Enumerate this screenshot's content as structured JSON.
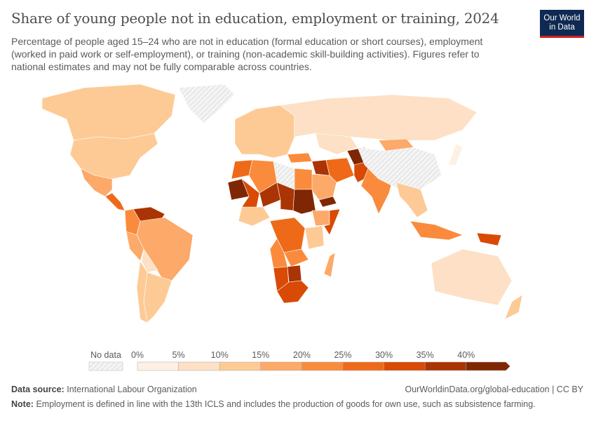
{
  "header": {
    "title": "Share of young people not in education, employment or training, 2024",
    "subtitle": "Percentage of people aged 15–24 who are not in education (formal education or short courses), employment (worked in paid work or self-employment), or training (non-academic skill-building activities). Figures refer to national estimates and may not be fully comparable across countries.",
    "logo": [
      "Our World",
      "in Data"
    ]
  },
  "chart_data": {
    "type": "choropleth",
    "title": "Share of young people not in education, employment or training, 2024",
    "year": 2024,
    "unit": "%",
    "legend": {
      "no_data_label": "No data",
      "ticks": [
        "0%",
        "5%",
        "10%",
        "15%",
        "20%",
        "25%",
        "30%",
        "35%",
        "40%"
      ],
      "bins": [
        {
          "min": 0,
          "max": 5,
          "color": "#fef0e2"
        },
        {
          "min": 5,
          "max": 10,
          "color": "#fde0c5"
        },
        {
          "min": 10,
          "max": 15,
          "color": "#fdca96"
        },
        {
          "min": 15,
          "max": 20,
          "color": "#fca96a"
        },
        {
          "min": 20,
          "max": 25,
          "color": "#fa8b3c"
        },
        {
          "min": 25,
          "max": 30,
          "color": "#ef6a18"
        },
        {
          "min": 30,
          "max": 35,
          "color": "#d84a05"
        },
        {
          "min": 35,
          "max": 40,
          "color": "#aa3404"
        },
        {
          "min": 40,
          "max": null,
          "color": "#7f2704"
        }
      ],
      "no_data_color": "#e8e8e8"
    },
    "regions": [
      {
        "name": "Canada",
        "value": 11
      },
      {
        "name": "United States",
        "value": 11
      },
      {
        "name": "Greenland",
        "value": null
      },
      {
        "name": "Mexico",
        "value": 18
      },
      {
        "name": "Central America",
        "value": 27
      },
      {
        "name": "Venezuela",
        "value": 38
      },
      {
        "name": "Colombia",
        "value": 22
      },
      {
        "name": "Brazil",
        "value": 19
      },
      {
        "name": "Peru",
        "value": 18
      },
      {
        "name": "Bolivia",
        "value": 8
      },
      {
        "name": "Argentina",
        "value": 12
      },
      {
        "name": "Chile",
        "value": 14
      },
      {
        "name": "Europe",
        "value": 10
      },
      {
        "name": "Russia",
        "value": 8
      },
      {
        "name": "Kazakhstan",
        "value": 9
      },
      {
        "name": "Turkey",
        "value": 23
      },
      {
        "name": "Iraq",
        "value": 36
      },
      {
        "name": "Iran",
        "value": 27
      },
      {
        "name": "Afghanistan",
        "value": 45
      },
      {
        "name": "Pakistan",
        "value": 33
      },
      {
        "name": "Saudi Arabia",
        "value": 16
      },
      {
        "name": "Yemen",
        "value": 45
      },
      {
        "name": "India",
        "value": 24
      },
      {
        "name": "China",
        "value": null
      },
      {
        "name": "Mongolia",
        "value": 16
      },
      {
        "name": "Southeast Asia",
        "value": 14
      },
      {
        "name": "Indonesia",
        "value": 22
      },
      {
        "name": "Papua New Guinea",
        "value": 30
      },
      {
        "name": "Australia",
        "value": 8
      },
      {
        "name": "New Zealand",
        "value": 11
      },
      {
        "name": "Japan",
        "value": 4
      },
      {
        "name": "Morocco",
        "value": 27
      },
      {
        "name": "Algeria",
        "value": 22
      },
      {
        "name": "Libya",
        "value": null
      },
      {
        "name": "Egypt",
        "value": 22
      },
      {
        "name": "Mauritania",
        "value": 41
      },
      {
        "name": "Mali",
        "value": 30
      },
      {
        "name": "Niger",
        "value": 36
      },
      {
        "name": "Chad",
        "value": 38
      },
      {
        "name": "Sudan",
        "value": 45
      },
      {
        "name": "Ethiopia",
        "value": 18
      },
      {
        "name": "Somalia",
        "value": 33
      },
      {
        "name": "Nigeria",
        "value": 12
      },
      {
        "name": "DR Congo",
        "value": 27
      },
      {
        "name": "Tanzania",
        "value": 14
      },
      {
        "name": "Angola",
        "value": 22
      },
      {
        "name": "Zambia",
        "value": 20
      },
      {
        "name": "Madagascar",
        "value": 18
      },
      {
        "name": "Namibia",
        "value": 30
      },
      {
        "name": "Botswana",
        "value": 37
      },
      {
        "name": "South Africa",
        "value": 33
      }
    ]
  },
  "footer": {
    "source_label": "Data source:",
    "source": "International Labour Organization",
    "url": "OurWorldinData.org/global-education | CC BY",
    "note_label": "Note:",
    "note": "Employment is defined in line with the 13th ICLS and includes the production of goods for own use, such as subsistence farming."
  }
}
